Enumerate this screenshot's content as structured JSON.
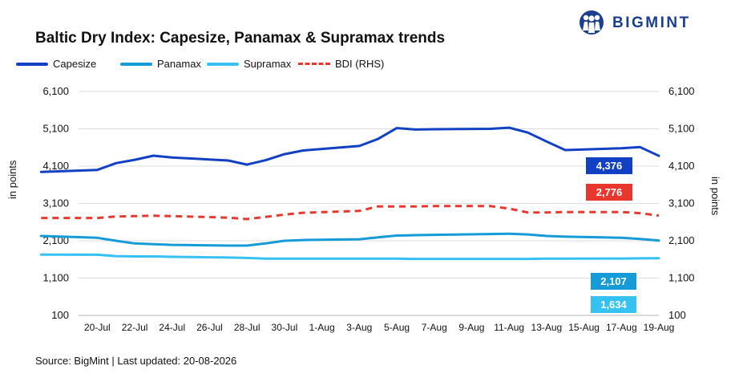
{
  "title": "Baltic Dry Index: Capesize, Panamax & Supramax trends",
  "brand": {
    "name": "BIGMINT",
    "logo_icon": "people-logo-icon",
    "color": "#1b3f8f"
  },
  "source": "Source: BigMint | Last updated: 20-08-2026",
  "chart_data": {
    "type": "line",
    "title": "Baltic Dry Index: Capesize, Panamax & Supramax trends",
    "ylabel": "in points",
    "y2label": "in points",
    "ylim": [
      100,
      6100
    ],
    "y2lim": [
      100,
      6100
    ],
    "yticks": [
      "6,100",
      "5,100",
      "4,100",
      "3,100",
      "2,100",
      "1,100",
      "100"
    ],
    "ytick_values": [
      6100,
      5100,
      4100,
      3100,
      2100,
      1100,
      100
    ],
    "x_labels": [
      "20-Jul",
      "22-Jul",
      "24-Jul",
      "26-Jul",
      "28-Jul",
      "30-Jul",
      "1-Aug",
      "3-Aug",
      "5-Aug",
      "7-Aug",
      "9-Aug",
      "11-Aug",
      "13-Aug",
      "15-Aug",
      "17-Aug",
      "19-Aug"
    ],
    "x": [
      "17-Jul",
      "20-Jul",
      "21-Jul",
      "22-Jul",
      "23-Jul",
      "24-Jul",
      "27-Jul",
      "28-Jul",
      "29-Jul",
      "30-Jul",
      "31-Jul",
      "3-Aug",
      "4-Aug",
      "5-Aug",
      "6-Aug",
      "7-Aug",
      "10-Aug",
      "11-Aug",
      "12-Aug",
      "13-Aug",
      "14-Aug",
      "17-Aug",
      "18-Aug",
      "19-Aug"
    ],
    "grid": true,
    "legend": "top-left",
    "series": [
      {
        "name": "Capesize",
        "color": "#1240c4",
        "dashed": false,
        "axis": "left",
        "values": [
          3946,
          4000,
          4180,
          4270,
          4380,
          4330,
          4250,
          4140,
          4260,
          4420,
          4520,
          4640,
          4830,
          5120,
          5080,
          5090,
          5100,
          5130,
          5000,
          4760,
          4530,
          4580,
          4610,
          4376
        ]
      },
      {
        "name": "Panamax",
        "color": "#159bd8",
        "dashed": false,
        "axis": "left",
        "values": [
          2230,
          2180,
          2100,
          2030,
          2010,
          1990,
          1970,
          1970,
          2030,
          2100,
          2120,
          2140,
          2190,
          2240,
          2250,
          2260,
          2280,
          2290,
          2270,
          2230,
          2210,
          2180,
          2150,
          2107
        ]
      },
      {
        "name": "Supramax",
        "color": "#35c1f2",
        "dashed": false,
        "axis": "left",
        "values": [
          1730,
          1725,
          1690,
          1680,
          1680,
          1670,
          1650,
          1640,
          1620,
          1620,
          1620,
          1620,
          1620,
          1620,
          1615,
          1615,
          1615,
          1615,
          1615,
          1620,
          1620,
          1625,
          1630,
          1634
        ]
      },
      {
        "name": "BDI (RHS)",
        "color": "#e8382e",
        "dashed": true,
        "axis": "right",
        "values": [
          2710,
          2710,
          2750,
          2760,
          2770,
          2760,
          2720,
          2680,
          2740,
          2800,
          2850,
          2900,
          3020,
          3020,
          3020,
          3030,
          3030,
          2960,
          2860,
          2860,
          2870,
          2870,
          2840,
          2776
        ]
      }
    ],
    "end_labels": [
      {
        "series": "Capesize",
        "text": "4,376",
        "color": "#1240c4"
      },
      {
        "series": "BDI (RHS)",
        "text": "2,776",
        "color": "#e8382e"
      },
      {
        "series": "Panamax",
        "text": "2,107",
        "color": "#159bd8"
      },
      {
        "series": "Supramax",
        "text": "1,634",
        "color": "#35c1f2"
      }
    ]
  }
}
